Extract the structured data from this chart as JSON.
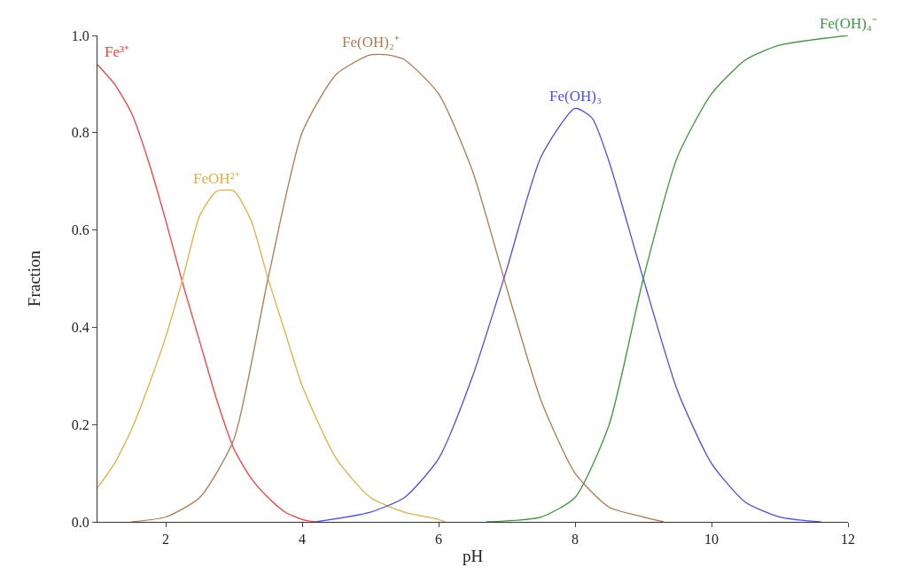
{
  "chart_data": {
    "type": "line",
    "xlabel": "pH",
    "ylabel": "Fraction",
    "xlim": [
      1,
      12
    ],
    "xticks": [
      2,
      4,
      6,
      8,
      10,
      12
    ],
    "ylim": [
      0,
      1.0
    ],
    "yticks": [
      {
        "value": 0,
        "label": "0.0"
      },
      0.2,
      0.4,
      0.6,
      0.8,
      {
        "value": 1.0,
        "label": "1.0"
      }
    ],
    "legend": false,
    "marker": "none",
    "line_style": "solid",
    "series": [
      {
        "name": "Fe³⁺",
        "color": "#ff3b3b",
        "x": [
          1,
          1.25,
          1.5,
          1.75,
          2.0,
          2.25,
          2.5,
          2.75,
          3.0,
          3.25,
          3.5,
          3.75,
          4.0,
          4.2
        ],
        "values": [
          0.94,
          0.9,
          0.84,
          0.74,
          0.62,
          0.49,
          0.37,
          0.25,
          0.15,
          0.09,
          0.05,
          0.02,
          0.005,
          0.0
        ]
      },
      {
        "name": "FeOH²⁺",
        "color": "#e0b040",
        "x": [
          1,
          1.25,
          1.5,
          1.75,
          2.0,
          2.25,
          2.5,
          2.75,
          3.0,
          3.25,
          3.5,
          3.75,
          4.0,
          4.5,
          5.0,
          5.5,
          6.0,
          6.1
        ],
        "values": [
          0.07,
          0.12,
          0.19,
          0.28,
          0.38,
          0.5,
          0.63,
          0.68,
          0.68,
          0.62,
          0.5,
          0.39,
          0.28,
          0.13,
          0.05,
          0.02,
          0.005,
          0.0
        ]
      },
      {
        "name": "Fe(OH)₂⁺",
        "color": "#b07a50",
        "x": [
          1.5,
          2.0,
          2.5,
          3.0,
          3.5,
          4.0,
          4.5,
          5.0,
          5.25,
          5.5,
          6.0,
          6.5,
          7.0,
          7.5,
          8.0,
          8.5,
          9.0,
          9.3
        ],
        "values": [
          0.0,
          0.01,
          0.05,
          0.17,
          0.5,
          0.8,
          0.92,
          0.96,
          0.96,
          0.95,
          0.88,
          0.72,
          0.48,
          0.25,
          0.1,
          0.03,
          0.01,
          0.0
        ]
      },
      {
        "name": "Fe(OH)₃",
        "color": "#4a4aff",
        "x": [
          4.2,
          5.0,
          5.5,
          6.0,
          6.5,
          7.0,
          7.5,
          8.0,
          8.25,
          8.5,
          9.0,
          9.5,
          10.0,
          10.5,
          11.0,
          11.6
        ],
        "values": [
          0.0,
          0.02,
          0.05,
          0.13,
          0.3,
          0.52,
          0.75,
          0.85,
          0.83,
          0.74,
          0.5,
          0.27,
          0.12,
          0.04,
          0.01,
          0.0
        ]
      },
      {
        "name": "Fe(OH)₄⁻",
        "color": "#3a9a3a",
        "x": [
          6.7,
          7.5,
          8.0,
          8.5,
          9.0,
          9.5,
          10.0,
          10.5,
          11.0,
          12.0
        ],
        "values": [
          0.0,
          0.01,
          0.05,
          0.2,
          0.5,
          0.75,
          0.88,
          0.95,
          0.98,
          1.0
        ]
      }
    ]
  }
}
